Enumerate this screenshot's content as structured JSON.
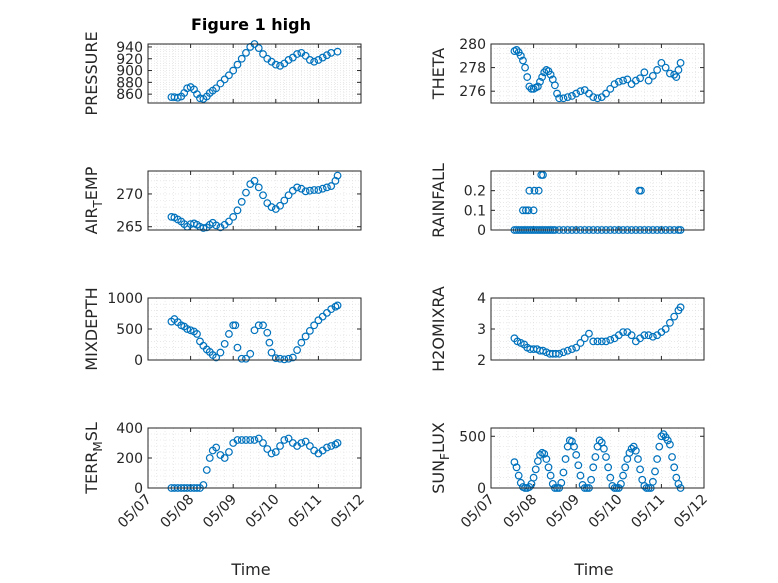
{
  "figure_title": "Figure 1 high",
  "marker_color": "#0072BD",
  "x_axis_label": "Time",
  "x_tick_labels": [
    "05/07",
    "05/08",
    "05/09",
    "05/10",
    "05/11",
    "05/12"
  ],
  "chart_data": [
    {
      "type": "scatter",
      "title": "Figure 1 high",
      "ylabel": "PRESSURE",
      "ylim": [
        845,
        945
      ],
      "yticks": [
        860,
        880,
        900,
        920,
        940
      ],
      "xlim": [
        0,
        5
      ],
      "grid": true,
      "x": [
        0.55,
        0.62,
        0.7,
        0.78,
        0.85,
        0.92,
        1.0,
        1.08,
        1.15,
        1.22,
        1.3,
        1.38,
        1.45,
        1.52,
        1.6,
        1.7,
        1.8,
        1.9,
        2.0,
        2.1,
        2.2,
        2.3,
        2.4,
        2.5,
        2.6,
        2.7,
        2.8,
        2.9,
        3.0,
        3.1,
        3.2,
        3.3,
        3.4,
        3.5,
        3.6,
        3.7,
        3.8,
        3.9,
        4.0,
        4.1,
        4.2,
        4.3,
        4.45
      ],
      "y": [
        855,
        855,
        854,
        856,
        862,
        870,
        872,
        868,
        860,
        853,
        852,
        856,
        862,
        866,
        870,
        878,
        885,
        892,
        900,
        910,
        920,
        930,
        940,
        945,
        938,
        928,
        920,
        915,
        910,
        908,
        912,
        918,
        922,
        928,
        930,
        925,
        918,
        915,
        918,
        922,
        926,
        930,
        932
      ]
    },
    {
      "type": "scatter",
      "ylabel": "THETA",
      "ylim": [
        275,
        280
      ],
      "yticks": [
        276,
        278,
        280
      ],
      "xlim": [
        0,
        5
      ],
      "grid": true,
      "x": [
        0.55,
        0.6,
        0.65,
        0.7,
        0.75,
        0.8,
        0.85,
        0.9,
        0.95,
        1.0,
        1.05,
        1.1,
        1.15,
        1.2,
        1.25,
        1.3,
        1.35,
        1.4,
        1.45,
        1.5,
        1.55,
        1.6,
        1.7,
        1.8,
        1.9,
        2.0,
        2.1,
        2.2,
        2.3,
        2.4,
        2.5,
        2.6,
        2.7,
        2.8,
        2.9,
        3.0,
        3.1,
        3.2,
        3.3,
        3.4,
        3.5,
        3.6,
        3.7,
        3.8,
        3.9,
        4.0,
        4.1,
        4.2,
        4.3,
        4.35,
        4.4,
        4.45
      ],
      "y": [
        279.4,
        279.5,
        279.3,
        279.0,
        278.6,
        278.0,
        277.2,
        276.4,
        276.2,
        276.2,
        276.3,
        276.4,
        276.8,
        277.2,
        277.6,
        277.8,
        277.7,
        277.4,
        277.0,
        276.5,
        275.8,
        275.4,
        275.4,
        275.5,
        275.6,
        275.8,
        276.0,
        276.1,
        275.8,
        275.5,
        275.4,
        275.5,
        275.8,
        276.2,
        276.6,
        276.8,
        276.9,
        277.0,
        276.6,
        276.9,
        277.1,
        277.6,
        276.9,
        277.3,
        277.8,
        278.4,
        278.0,
        277.5,
        277.4,
        277.2,
        277.8,
        278.4
      ]
    },
    {
      "type": "scatter",
      "ylabel": "AIR_TEMP",
      "ylim": [
        264.5,
        273.5
      ],
      "yticks": [
        265,
        270
      ],
      "xlim": [
        0,
        5
      ],
      "grid": true,
      "x": [
        0.55,
        0.62,
        0.7,
        0.78,
        0.85,
        0.92,
        1.0,
        1.08,
        1.15,
        1.22,
        1.3,
        1.38,
        1.45,
        1.52,
        1.6,
        1.7,
        1.8,
        1.9,
        2.0,
        2.1,
        2.2,
        2.3,
        2.4,
        2.5,
        2.6,
        2.7,
        2.8,
        2.9,
        3.0,
        3.1,
        3.2,
        3.3,
        3.4,
        3.5,
        3.6,
        3.7,
        3.8,
        3.9,
        4.0,
        4.1,
        4.2,
        4.3,
        4.4,
        4.45
      ],
      "y": [
        266.5,
        266.4,
        266.1,
        265.8,
        265.4,
        265.0,
        265.4,
        265.5,
        265.3,
        265.0,
        264.8,
        264.9,
        265.3,
        265.6,
        265.2,
        264.9,
        265.3,
        265.8,
        266.5,
        267.5,
        268.8,
        270.2,
        271.5,
        272.0,
        271.0,
        269.8,
        268.6,
        268.0,
        267.7,
        268.2,
        269.0,
        269.8,
        270.5,
        271.0,
        270.8,
        270.4,
        270.5,
        270.6,
        270.6,
        270.8,
        271.0,
        271.2,
        272.0,
        272.8
      ]
    },
    {
      "type": "scatter",
      "ylabel": "RAINFALL",
      "ylim": [
        0,
        0.3
      ],
      "yticks": [
        0,
        0.1,
        0.2
      ],
      "xlim": [
        0,
        5
      ],
      "grid": true,
      "x": [
        0.55,
        0.6,
        0.65,
        0.7,
        0.75,
        0.8,
        0.85,
        0.9,
        0.95,
        1.0,
        1.05,
        1.1,
        1.15,
        1.2,
        1.25,
        1.3,
        1.35,
        1.4,
        1.45,
        1.5,
        1.6,
        1.7,
        1.8,
        1.9,
        2.0,
        2.1,
        2.2,
        2.3,
        2.4,
        2.5,
        2.6,
        2.7,
        2.8,
        2.9,
        3.0,
        3.1,
        3.2,
        3.3,
        3.4,
        3.5,
        3.6,
        3.7,
        3.8,
        3.9,
        4.0,
        4.1,
        4.2,
        4.3,
        4.4,
        4.45,
        0.75,
        0.82,
        0.88,
        0.9,
        1.0,
        1.02,
        1.12,
        1.18,
        1.22,
        3.48,
        3.52
      ],
      "y": [
        0,
        0,
        0,
        0,
        0,
        0,
        0,
        0,
        0,
        0,
        0,
        0,
        0,
        0,
        0,
        0,
        0,
        0,
        0,
        0,
        0,
        0,
        0,
        0,
        0,
        0,
        0,
        0,
        0,
        0,
        0,
        0,
        0,
        0,
        0,
        0,
        0,
        0,
        0,
        0,
        0,
        0,
        0,
        0,
        0,
        0,
        0,
        0,
        0,
        0,
        0.1,
        0.1,
        0.1,
        0.2,
        0.1,
        0.2,
        0.2,
        0.28,
        0.28,
        0.2,
        0.2
      ]
    },
    {
      "type": "scatter",
      "ylabel": "MIXDEPTH",
      "ylim": [
        0,
        1000
      ],
      "yticks": [
        0,
        500,
        1000
      ],
      "xlim": [
        0,
        5
      ],
      "grid": true,
      "x": [
        0.55,
        0.62,
        0.7,
        0.78,
        0.85,
        0.92,
        1.0,
        1.08,
        1.15,
        1.22,
        1.3,
        1.38,
        1.45,
        1.52,
        1.6,
        1.7,
        1.8,
        1.9,
        2.0,
        2.05,
        2.1,
        2.2,
        2.3,
        2.4,
        2.5,
        2.6,
        2.7,
        2.8,
        2.85,
        2.9,
        3.0,
        3.1,
        3.2,
        3.3,
        3.4,
        3.5,
        3.6,
        3.7,
        3.8,
        3.9,
        4.0,
        4.1,
        4.2,
        4.3,
        4.4,
        4.45
      ],
      "y": [
        620,
        660,
        610,
        560,
        540,
        500,
        480,
        460,
        420,
        300,
        230,
        170,
        130,
        80,
        40,
        120,
        260,
        420,
        560,
        560,
        200,
        20,
        20,
        100,
        480,
        560,
        560,
        440,
        280,
        120,
        30,
        20,
        10,
        20,
        40,
        160,
        280,
        380,
        470,
        560,
        640,
        700,
        760,
        820,
        860,
        880
      ]
    },
    {
      "type": "scatter",
      "ylabel": "H2OMIXRA",
      "ylim": [
        2,
        4
      ],
      "yticks": [
        2,
        3,
        4
      ],
      "xlim": [
        0,
        5
      ],
      "grid": true,
      "x": [
        0.55,
        0.62,
        0.7,
        0.78,
        0.85,
        0.92,
        1.0,
        1.08,
        1.15,
        1.22,
        1.3,
        1.38,
        1.45,
        1.52,
        1.6,
        1.7,
        1.8,
        1.9,
        2.0,
        2.1,
        2.2,
        2.3,
        2.4,
        2.5,
        2.6,
        2.7,
        2.8,
        2.9,
        3.0,
        3.1,
        3.2,
        3.3,
        3.4,
        3.5,
        3.6,
        3.7,
        3.8,
        3.9,
        4.0,
        4.1,
        4.2,
        4.3,
        4.4,
        4.45
      ],
      "y": [
        2.7,
        2.6,
        2.55,
        2.5,
        2.4,
        2.35,
        2.35,
        2.35,
        2.3,
        2.3,
        2.25,
        2.2,
        2.2,
        2.2,
        2.2,
        2.25,
        2.3,
        2.35,
        2.4,
        2.55,
        2.7,
        2.85,
        2.6,
        2.6,
        2.6,
        2.6,
        2.65,
        2.7,
        2.8,
        2.9,
        2.9,
        2.8,
        2.6,
        2.7,
        2.8,
        2.8,
        2.75,
        2.8,
        2.9,
        3.0,
        3.2,
        3.4,
        3.6,
        3.7
      ]
    },
    {
      "type": "scatter",
      "ylabel": "TERR_MSL",
      "ylim": [
        0,
        400
      ],
      "yticks": [
        0,
        200,
        400
      ],
      "xlim": [
        0,
        5
      ],
      "grid": true,
      "x": [
        0.55,
        0.62,
        0.7,
        0.78,
        0.85,
        0.92,
        1.0,
        1.08,
        1.15,
        1.22,
        1.3,
        1.38,
        1.45,
        1.52,
        1.6,
        1.7,
        1.8,
        1.9,
        2.0,
        2.1,
        2.2,
        2.3,
        2.4,
        2.5,
        2.6,
        2.7,
        2.8,
        2.9,
        3.0,
        3.1,
        3.2,
        3.3,
        3.4,
        3.5,
        3.6,
        3.7,
        3.8,
        3.9,
        4.0,
        4.1,
        4.2,
        4.3,
        4.4,
        4.45
      ],
      "y": [
        0,
        0,
        0,
        0,
        0,
        0,
        0,
        0,
        0,
        0,
        20,
        120,
        200,
        250,
        270,
        220,
        200,
        240,
        300,
        320,
        320,
        320,
        320,
        320,
        330,
        300,
        260,
        230,
        240,
        280,
        320,
        330,
        300,
        280,
        300,
        310,
        280,
        250,
        230,
        250,
        270,
        280,
        290,
        300
      ]
    },
    {
      "type": "scatter",
      "ylabel": "SUN_FLUX",
      "ylim": [
        0,
        580
      ],
      "yticks": [
        0,
        500
      ],
      "xlim": [
        0,
        5
      ],
      "grid": true,
      "x": [
        0.55,
        0.6,
        0.65,
        0.7,
        0.75,
        0.8,
        0.85,
        0.9,
        0.95,
        1.0,
        1.05,
        1.1,
        1.15,
        1.2,
        1.25,
        1.3,
        1.35,
        1.4,
        1.45,
        1.5,
        1.55,
        1.6,
        1.65,
        1.7,
        1.75,
        1.8,
        1.85,
        1.9,
        1.95,
        2.0,
        2.05,
        2.1,
        2.15,
        2.2,
        2.25,
        2.3,
        2.35,
        2.4,
        2.45,
        2.5,
        2.55,
        2.6,
        2.65,
        2.7,
        2.75,
        2.8,
        2.85,
        2.9,
        2.95,
        3.0,
        3.05,
        3.1,
        3.15,
        3.2,
        3.25,
        3.3,
        3.35,
        3.4,
        3.45,
        3.5,
        3.55,
        3.6,
        3.65,
        3.7,
        3.75,
        3.8,
        3.85,
        3.9,
        3.95,
        4.0,
        4.05,
        4.1,
        4.15,
        4.2,
        4.25,
        4.3,
        4.35,
        4.4,
        4.45
      ],
      "y": [
        250,
        200,
        120,
        50,
        10,
        0,
        0,
        10,
        40,
        100,
        180,
        260,
        320,
        340,
        330,
        280,
        200,
        120,
        40,
        0,
        0,
        0,
        50,
        150,
        280,
        400,
        460,
        450,
        400,
        320,
        220,
        120,
        30,
        0,
        0,
        0,
        80,
        200,
        300,
        400,
        460,
        440,
        380,
        300,
        200,
        100,
        20,
        0,
        0,
        0,
        40,
        120,
        200,
        280,
        340,
        380,
        400,
        360,
        280,
        180,
        80,
        20,
        0,
        0,
        0,
        60,
        160,
        280,
        400,
        500,
        520,
        490,
        460,
        420,
        300,
        200,
        100,
        40,
        0
      ]
    }
  ]
}
